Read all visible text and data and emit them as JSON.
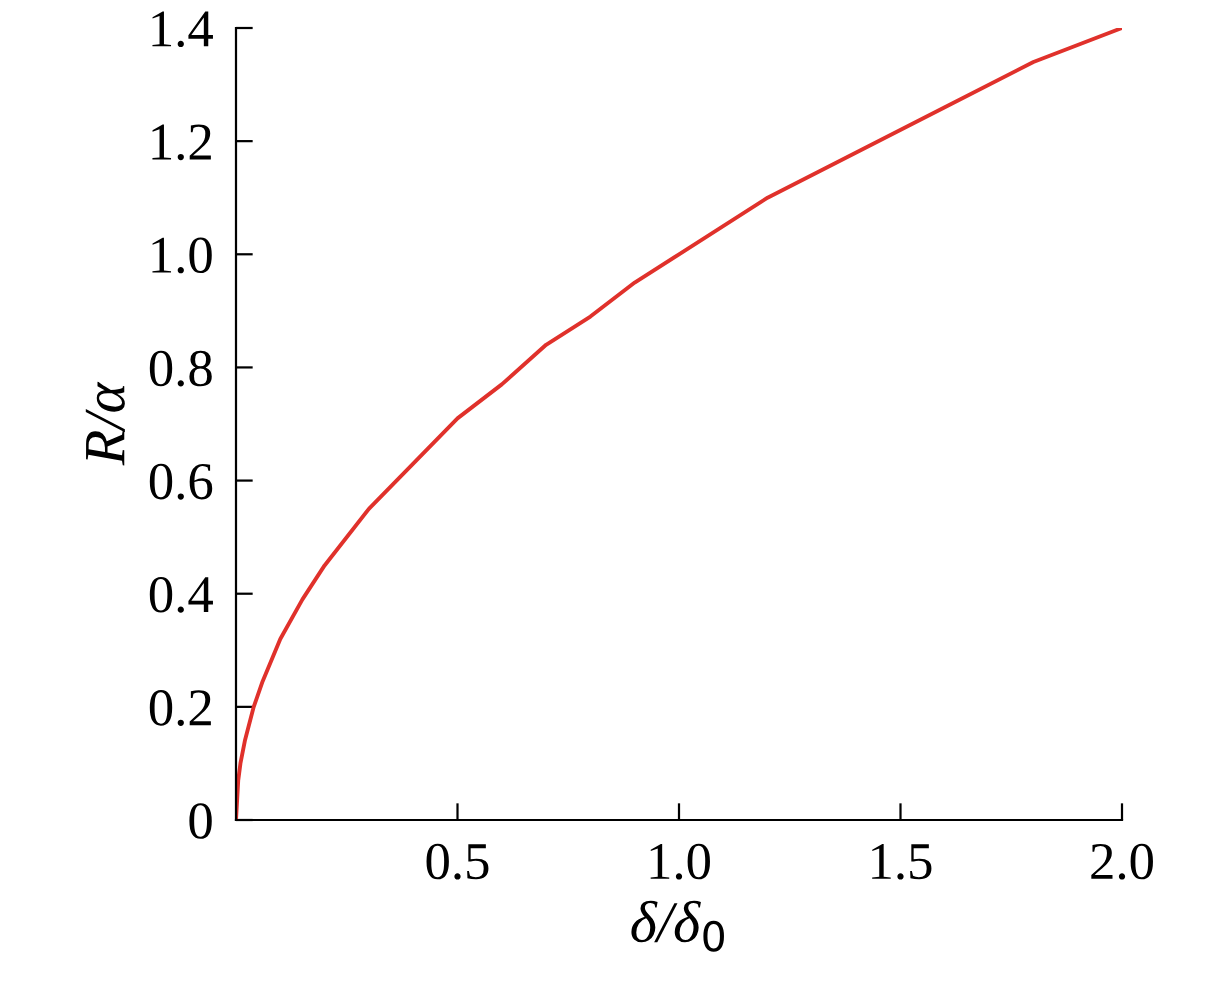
{
  "chart_data": {
    "type": "line",
    "xlabel": "δ/δ$_{0}$",
    "ylabel": "R/α",
    "x": [
      0,
      0.005,
      0.01,
      0.02,
      0.04,
      0.06,
      0.1,
      0.15,
      0.2,
      0.3,
      0.4,
      0.5,
      0.6,
      0.7,
      0.8,
      0.9,
      1.0,
      1.2,
      1.4,
      1.6,
      1.8,
      2.0
    ],
    "series": [
      {
        "color": "#e0312b",
        "values": [
          0,
          0.07,
          0.1,
          0.14,
          0.2,
          0.245,
          0.32,
          0.39,
          0.45,
          0.55,
          0.63,
          0.71,
          0.77,
          0.84,
          0.89,
          0.95,
          1.0,
          1.1,
          1.18,
          1.26,
          1.34,
          1.4
        ]
      }
    ],
    "xlim": [
      0,
      2.0
    ],
    "ylim": [
      0,
      1.4
    ],
    "xticks": [
      0.5,
      {
        "value": 1.0,
        "label": "1.0"
      },
      1.5,
      {
        "value": 2.0,
        "label": "2.0"
      }
    ],
    "yticks": [
      0,
      0.2,
      0.4,
      0.6,
      0.8,
      {
        "value": 1.0,
        "label": "1.0"
      },
      1.2,
      1.4
    ],
    "grid": false,
    "legend": false,
    "marker": "none",
    "line_style": "solid"
  }
}
